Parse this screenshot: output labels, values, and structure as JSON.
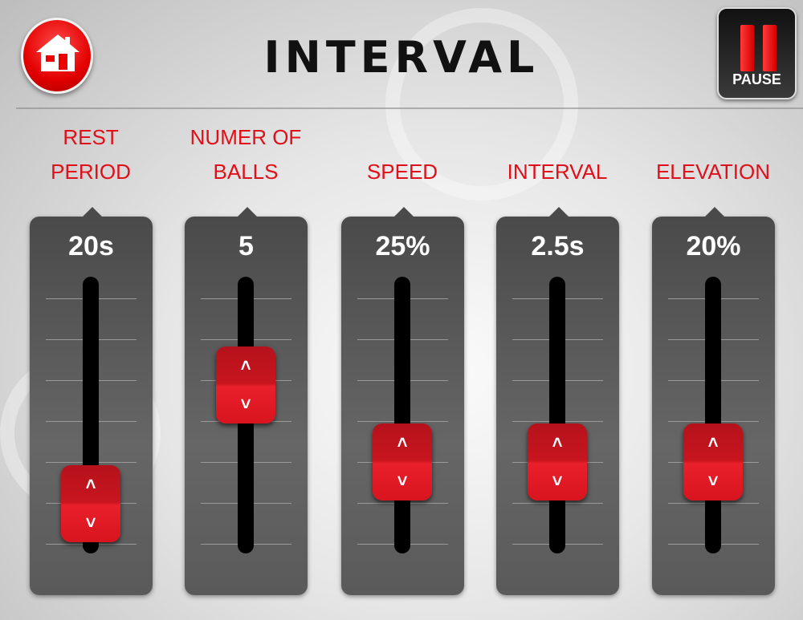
{
  "header": {
    "title": "INTERVAL",
    "home_icon": "home-icon",
    "pause_label": "PAUSE",
    "pause_icon": "pause-icon"
  },
  "colors": {
    "accent": "#e0101a",
    "panel": "#555555"
  },
  "sliders": [
    {
      "label_line1": "REST",
      "label_line2": "PERIOD",
      "value": "20s",
      "level": 0.18
    },
    {
      "label_line1": "NUMER OF",
      "label_line2": "BALLS",
      "value": "5",
      "level": 0.61
    },
    {
      "label_line1": "",
      "label_line2": "SPEED",
      "value": "25%",
      "level": 0.33
    },
    {
      "label_line1": "",
      "label_line2": "INTERVAL",
      "value": "2.5s",
      "level": 0.33
    },
    {
      "label_line1": "",
      "label_line2": "ELEVATION",
      "value": "20%",
      "level": 0.33
    }
  ],
  "handle": {
    "up": "˄",
    "down": "˅"
  }
}
